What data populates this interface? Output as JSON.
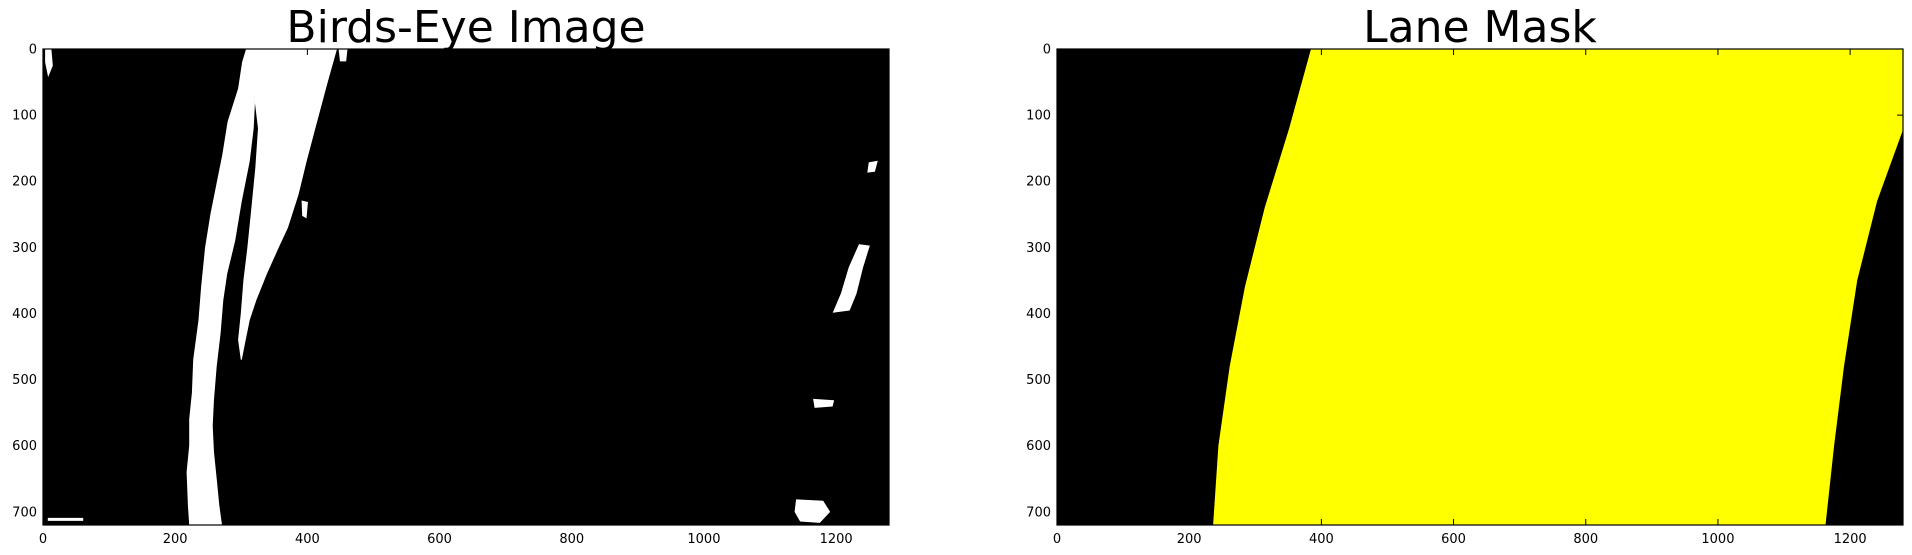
{
  "chart_data": [
    {
      "type": "image",
      "title": "Birds-Eye Image",
      "xlim": [
        0,
        1280
      ],
      "ylim": [
        720,
        0
      ],
      "xticks": [
        0,
        200,
        400,
        600,
        800,
        1000,
        1200
      ],
      "yticks": [
        0,
        100,
        200,
        300,
        400,
        500,
        600,
        700
      ],
      "background_color": "#000000",
      "foreground_color": "#ffffff",
      "regions": [
        {
          "name": "left-lane-line",
          "polygon": [
            [
              308,
              0
            ],
            [
              318,
              0
            ],
            [
              315,
              40
            ],
            [
              320,
              80
            ],
            [
              318,
              120
            ],
            [
              312,
              170
            ],
            [
              300,
              230
            ],
            [
              290,
              290
            ],
            [
              278,
              340
            ],
            [
              272,
              380
            ],
            [
              268,
              430
            ],
            [
              262,
              480
            ],
            [
              258,
              530
            ],
            [
              256,
              570
            ],
            [
              258,
              610
            ],
            [
              262,
              650
            ],
            [
              266,
              690
            ],
            [
              270,
              720
            ],
            [
              222,
              720
            ],
            [
              220,
              690
            ],
            [
              218,
              640
            ],
            [
              222,
              600
            ],
            [
              222,
              560
            ],
            [
              226,
              520
            ],
            [
              228,
              470
            ],
            [
              236,
              410
            ],
            [
              240,
              360
            ],
            [
              246,
              300
            ],
            [
              254,
              250
            ],
            [
              264,
              200
            ],
            [
              272,
              160
            ],
            [
              280,
              110
            ],
            [
              296,
              60
            ],
            [
              302,
              20
            ]
          ]
        },
        {
          "name": "left-lane-line-upper",
          "polygon": [
            [
              308,
              0
            ],
            [
              444,
              0
            ],
            [
              430,
              50
            ],
            [
              414,
              110
            ],
            [
              398,
              170
            ],
            [
              386,
              220
            ],
            [
              370,
              270
            ],
            [
              356,
              300
            ],
            [
              338,
              340
            ],
            [
              322,
              380
            ],
            [
              312,
              410
            ],
            [
              306,
              440
            ],
            [
              300,
              470
            ],
            [
              296,
              440
            ],
            [
              300,
              400
            ],
            [
              304,
              350
            ],
            [
              310,
              300
            ],
            [
              316,
              240
            ],
            [
              322,
              180
            ],
            [
              326,
              120
            ],
            [
              320,
              70
            ],
            [
              314,
              30
            ]
          ]
        },
        {
          "name": "blob-top-left",
          "polygon": [
            [
              4,
              0
            ],
            [
              12,
              0
            ],
            [
              14,
              25
            ],
            [
              8,
              40
            ],
            [
              4,
              20
            ]
          ]
        },
        {
          "name": "blob-top-center",
          "polygon": [
            [
              448,
              0
            ],
            [
              460,
              0
            ],
            [
              458,
              18
            ],
            [
              450,
              18
            ]
          ]
        },
        {
          "name": "blob-mid-left",
          "polygon": [
            [
              392,
              230
            ],
            [
              400,
              232
            ],
            [
              398,
              255
            ],
            [
              393,
              252
            ]
          ]
        },
        {
          "name": "blob-right-upper",
          "polygon": [
            [
              1250,
              172
            ],
            [
              1262,
              170
            ],
            [
              1258,
              185
            ],
            [
              1248,
              186
            ]
          ]
        },
        {
          "name": "blob-right-mid",
          "polygon": [
            [
              1235,
              296
            ],
            [
              1250,
              298
            ],
            [
              1240,
              330
            ],
            [
              1230,
              370
            ],
            [
              1220,
              395
            ],
            [
              1196,
              398
            ],
            [
              1208,
              370
            ],
            [
              1220,
              330
            ]
          ]
        },
        {
          "name": "blob-right-lower",
          "polygon": [
            [
              1166,
              530
            ],
            [
              1196,
              532
            ],
            [
              1194,
              540
            ],
            [
              1168,
              542
            ]
          ]
        },
        {
          "name": "blob-bottom-right",
          "polygon": [
            [
              1140,
              682
            ],
            [
              1180,
              684
            ],
            [
              1190,
              700
            ],
            [
              1175,
              716
            ],
            [
              1146,
              714
            ],
            [
              1138,
              700
            ]
          ]
        },
        {
          "name": "blob-bottom-left",
          "polygon": [
            [
              8,
              710
            ],
            [
              60,
              710
            ],
            [
              60,
              713
            ],
            [
              8,
              713
            ]
          ]
        }
      ]
    },
    {
      "type": "image",
      "title": "Lane Mask",
      "xlim": [
        0,
        1280
      ],
      "ylim": [
        720,
        0
      ],
      "xticks": [
        0,
        200,
        400,
        600,
        800,
        1000,
        1200
      ],
      "yticks": [
        0,
        100,
        200,
        300,
        400,
        500,
        600,
        700
      ],
      "background_color": "#000000",
      "foreground_color": "#ffff00",
      "regions": [
        {
          "name": "lane-area",
          "polygon": [
            [
              385,
              0
            ],
            [
              1280,
              0
            ],
            [
              1280,
              120
            ],
            [
              1240,
              230
            ],
            [
              1210,
              350
            ],
            [
              1190,
              480
            ],
            [
              1175,
              600
            ],
            [
              1162,
              720
            ],
            [
              237,
              720
            ],
            [
              245,
              600
            ],
            [
              262,
              480
            ],
            [
              285,
              360
            ],
            [
              315,
              240
            ],
            [
              352,
              120
            ]
          ]
        }
      ]
    }
  ]
}
